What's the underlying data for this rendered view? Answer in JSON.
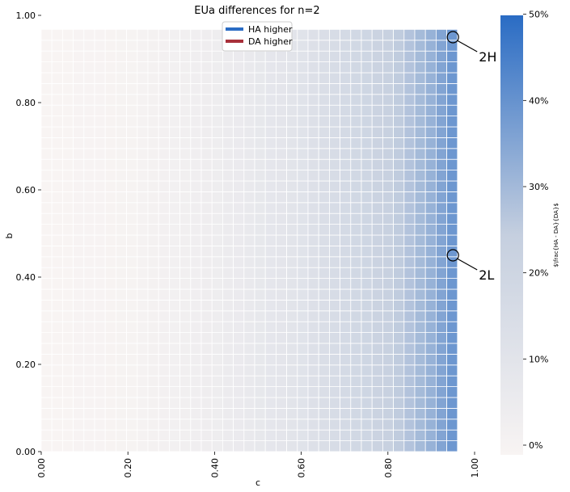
{
  "chart_data": {
    "type": "heatmap",
    "title": "EUa differences for n=2",
    "xlabel": "c",
    "ylabel": "b",
    "xlim": [
      0,
      1
    ],
    "ylim": [
      0,
      1
    ],
    "x_ticks": [
      "0.00",
      "0.20",
      "0.40",
      "0.60",
      "0.80",
      "1.00"
    ],
    "y_ticks": [
      "0.00",
      "0.20",
      "0.40",
      "0.60",
      "0.80",
      "1.00"
    ],
    "grid_cells": 39,
    "cell_value_by_c": {
      "c": [
        0.0,
        0.2,
        0.4,
        0.6,
        0.8,
        0.9,
        0.95,
        0.975
      ],
      "value_percent": [
        0,
        1,
        5,
        12,
        24,
        33,
        40,
        51
      ]
    },
    "colorbar": {
      "label": "$\\frac{HA - DA}{DA}$",
      "range_percent": [
        0,
        51
      ],
      "tick_labels": [
        "0%",
        "10%",
        "20%",
        "30%",
        "40%",
        "50%"
      ],
      "low_color": "#f8f4f3",
      "high_color": "#2a6cc4"
    },
    "legend": {
      "placement": "top-center",
      "entries": [
        {
          "label": "HA higher",
          "color": "#2a6cc4"
        },
        {
          "label": "DA higher",
          "color": "#a8303a"
        }
      ]
    },
    "annotations": [
      {
        "label": "2H",
        "c": 0.95,
        "b": 0.95
      },
      {
        "label": "2L",
        "c": 0.95,
        "b": 0.45
      }
    ]
  }
}
